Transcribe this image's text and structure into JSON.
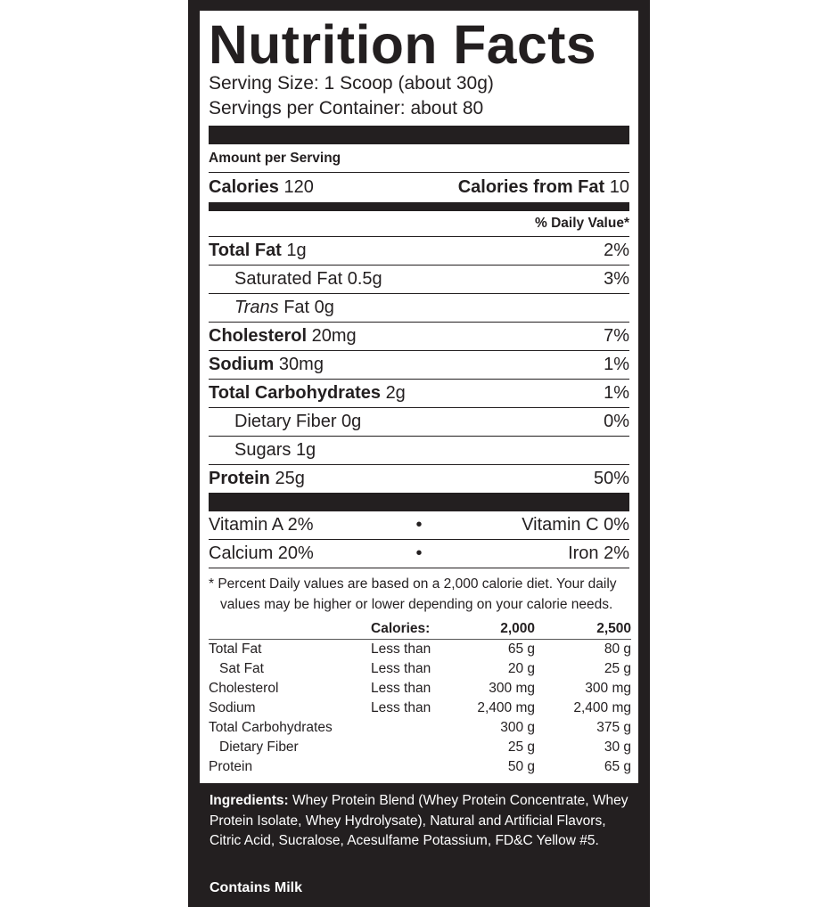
{
  "title": "Nutrition Facts",
  "serving_size": "Serving Size: 1 Scoop (about 30g)",
  "servings_per_container": "Servings per Container: about 80",
  "amount_per_serving": "Amount per Serving",
  "calories": {
    "label": "Calories",
    "value": "120",
    "from_fat_label": "Calories from Fat",
    "from_fat_value": "10"
  },
  "daily_value_header": "% Daily Value*",
  "nutrients": [
    {
      "name": "Total Fat",
      "amount": "1g",
      "dv": "2%",
      "bold": true
    },
    {
      "name": "Saturated Fat",
      "amount": "0.5g",
      "dv": "3%",
      "bold": false
    },
    {
      "name": "Trans",
      "name_suffix": " Fat",
      "amount": "0g",
      "dv": "",
      "bold": false
    },
    {
      "name": "Cholesterol",
      "amount": "20mg",
      "dv": "7%",
      "bold": true
    },
    {
      "name": "Sodium",
      "amount": "30mg",
      "dv": "1%",
      "bold": true
    },
    {
      "name": "Total Carbohydrates",
      "amount": "2g",
      "dv": "1%",
      "bold": true
    },
    {
      "name": "Dietary Fiber",
      "amount": "0g",
      "dv": "0%",
      "bold": false
    },
    {
      "name": "Sugars",
      "amount": "1g",
      "dv": "",
      "bold": false
    },
    {
      "name": "Protein",
      "amount": "25g",
      "dv": "50%",
      "bold": true
    }
  ],
  "vitamins": [
    {
      "left": "Vitamin A  2%",
      "sep": "•",
      "right": "Vitamin C  0%"
    },
    {
      "left": "Calcium  20%",
      "sep": "•",
      "right": "Iron  2%"
    }
  ],
  "footnote": [
    "* Percent Daily values are based on a 2,000 calorie diet. Your daily",
    "values may be higher or lower depending on your calorie needs."
  ],
  "dv_table": {
    "header": [
      "",
      "Calories:",
      "2,000",
      "2,500"
    ],
    "rows": [
      [
        "Total Fat",
        "Less than",
        "65 g",
        "80 g"
      ],
      [
        "Sat Fat",
        "Less than",
        "20 g",
        "25 g"
      ],
      [
        "Cholesterol",
        "Less than",
        "300 mg",
        "300 mg"
      ],
      [
        "Sodium",
        "Less than",
        "2,400 mg",
        "2,400 mg"
      ],
      [
        "Total Carbohydrates",
        "",
        "300 g",
        "375 g"
      ],
      [
        "Dietary Fiber",
        "",
        "25 g",
        "30 g"
      ],
      [
        "Protein",
        "",
        "50 g",
        "65 g"
      ]
    ]
  },
  "ingredients": {
    "label": "Ingredients:",
    "text": " Whey Protein Blend (Whey Protein Concentrate, Whey Protein Isolate, Whey Hydrolysate), Natural and Artificial Flavors, Citric Acid, Sucralose, Acesulfame Potassium, FD&C Yellow #5."
  },
  "allergen": "Contains Milk",
  "colors": {
    "ink": "#231f20",
    "paper": "#ffffff"
  }
}
